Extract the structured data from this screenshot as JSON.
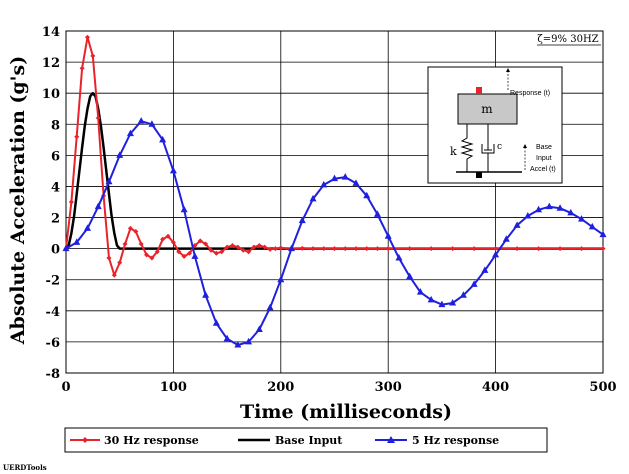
{
  "chart_data": {
    "type": "line",
    "xlabel": "Time (milliseconds)",
    "ylabel": "Absolute Acceleration (g's)",
    "xlim": [
      0,
      500
    ],
    "ylim": [
      -8,
      14
    ],
    "x_ticks": [
      "0",
      "100",
      "200",
      "300",
      "400",
      "500"
    ],
    "y_ticks": [
      "-8",
      "-6",
      "-4",
      "-2",
      "0",
      "2",
      "4",
      "6",
      "8",
      "10",
      "12",
      "14"
    ],
    "grid": true,
    "annotation": "ζ=9% 30HZ",
    "legend_position": "bottom",
    "series": [
      {
        "name": "30 Hz response",
        "color": "#e8232a",
        "marker": "diamond",
        "x": [
          0,
          5,
          10,
          15,
          20,
          25,
          30,
          35,
          40,
          45,
          50,
          55,
          60,
          65,
          70,
          75,
          80,
          85,
          90,
          95,
          100,
          105,
          110,
          115,
          120,
          125,
          130,
          135,
          140,
          145,
          150,
          155,
          160,
          165,
          170,
          175,
          180,
          185,
          190,
          195,
          200,
          210,
          220,
          230,
          240,
          250,
          260,
          270,
          280,
          290,
          300,
          320,
          340,
          360,
          380,
          400,
          420,
          440,
          460,
          480,
          500
        ],
        "y": [
          0,
          3.0,
          7.2,
          11.6,
          13.6,
          12.4,
          8.4,
          3.4,
          -0.6,
          -1.7,
          -0.9,
          0.3,
          1.3,
          1.1,
          0.3,
          -0.4,
          -0.6,
          -0.2,
          0.6,
          0.8,
          0.4,
          -0.2,
          -0.5,
          -0.3,
          0.2,
          0.5,
          0.3,
          -0.1,
          -0.3,
          -0.2,
          0.1,
          0.2,
          0.1,
          -0.1,
          -0.2,
          0.1,
          0.2,
          0.1,
          -0.05,
          0,
          0.05,
          0,
          0.02,
          0,
          0,
          0,
          0,
          0,
          0,
          0,
          0,
          0,
          0,
          0,
          0,
          0,
          0,
          0,
          0,
          0,
          0
        ]
      },
      {
        "name": "Base Input",
        "color": "#000000",
        "marker": "none",
        "x": [
          0,
          2.5,
          5,
          7.5,
          10,
          12.5,
          15,
          17.5,
          20,
          22.5,
          25,
          27.5,
          30,
          32.5,
          35,
          37.5,
          40,
          42.5,
          45,
          47.5,
          50,
          60,
          100,
          200,
          300,
          400,
          500
        ],
        "y": [
          0,
          0.2,
          1.0,
          2.1,
          3.5,
          5.0,
          6.5,
          7.9,
          9.0,
          9.8,
          10.0,
          9.8,
          9.0,
          7.9,
          6.5,
          5.0,
          3.5,
          2.1,
          1.0,
          0.2,
          0,
          0,
          0,
          0,
          0,
          0,
          0
        ]
      },
      {
        "name": "5 Hz response",
        "color": "#1f1fe0",
        "marker": "triangle",
        "x": [
          0,
          10,
          20,
          30,
          40,
          50,
          60,
          70,
          80,
          90,
          100,
          110,
          120,
          130,
          140,
          150,
          160,
          170,
          180,
          190,
          200,
          210,
          220,
          230,
          240,
          250,
          260,
          270,
          280,
          290,
          300,
          310,
          320,
          330,
          340,
          350,
          360,
          370,
          380,
          390,
          400,
          410,
          420,
          430,
          440,
          450,
          460,
          470,
          480,
          490,
          500
        ],
        "y": [
          0,
          0.4,
          1.3,
          2.7,
          4.3,
          6.0,
          7.4,
          8.2,
          8.0,
          7.0,
          5.0,
          2.5,
          -0.5,
          -3.0,
          -4.8,
          -5.8,
          -6.2,
          -6.0,
          -5.2,
          -3.8,
          -2.0,
          0,
          1.8,
          3.2,
          4.1,
          4.5,
          4.6,
          4.2,
          3.4,
          2.2,
          0.8,
          -0.6,
          -1.8,
          -2.8,
          -3.3,
          -3.6,
          -3.5,
          -3.0,
          -2.3,
          -1.4,
          -0.4,
          0.6,
          1.5,
          2.1,
          2.5,
          2.7,
          2.6,
          2.3,
          1.9,
          1.4,
          0.9
        ]
      }
    ]
  },
  "inset": {
    "mass_label": "m",
    "spring_label": "k",
    "damper_label": "c",
    "response_label": "Response (t)",
    "base_label_1": "Base",
    "base_label_2": "Input",
    "base_label_3": "Accel (t)"
  },
  "footer": "UERDTools"
}
